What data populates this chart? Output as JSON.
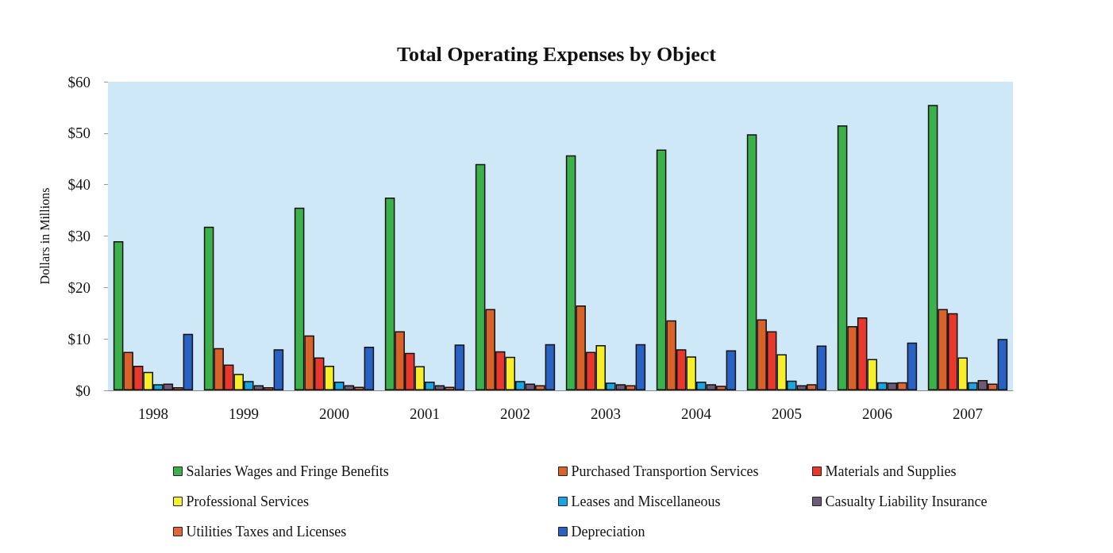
{
  "chart_data": {
    "type": "bar",
    "title": "Total Operating Expenses by Object",
    "ylabel": "Dollars in Millions",
    "categories": [
      "1998",
      "1999",
      "2000",
      "2001",
      "2002",
      "2003",
      "2004",
      "2005",
      "2006",
      "2007"
    ],
    "series": [
      {
        "name": "Salaries Wages and Fringe Benefits",
        "color": "#3cb04a",
        "values": [
          29,
          31.8,
          35.5,
          37.5,
          44,
          45.7,
          46.8,
          49.8,
          51.5,
          55.5
        ]
      },
      {
        "name": "Purchased Transportion Services",
        "color": "#d9622b",
        "values": [
          7.5,
          8.2,
          10.7,
          11.5,
          15.8,
          16.5,
          13.6,
          13.8,
          12.5,
          15.8
        ]
      },
      {
        "name": "Materials and Supplies",
        "color": "#e8382c",
        "values": [
          4.8,
          5,
          6.4,
          7.3,
          7.6,
          7.5,
          8,
          11.5,
          14.2,
          15
        ]
      },
      {
        "name": "Professional Services",
        "color": "#f6ee2a",
        "values": [
          3.6,
          3.2,
          4.8,
          4.7,
          6.5,
          8.8,
          6.6,
          7,
          6.1,
          6.4
        ]
      },
      {
        "name": "Leases and Miscellaneous",
        "color": "#1aa5e0",
        "values": [
          1.2,
          1.8,
          1.7,
          1.7,
          1.8,
          1.5,
          1.7,
          1.9,
          1.6,
          1.6
        ]
      },
      {
        "name": "Casualty Liability Insurance",
        "color": "#6e5a78",
        "values": [
          1.3,
          1,
          1,
          1,
          1.3,
          1.2,
          1.2,
          1,
          1.5,
          2
        ]
      },
      {
        "name": "Utilities Taxes and Licenses",
        "color": "#e0663a",
        "values": [
          0.6,
          0.6,
          0.7,
          0.7,
          1,
          1,
          0.9,
          1.2,
          1.6,
          1.3
        ]
      },
      {
        "name": "Depreciation",
        "color": "#2a62c4",
        "values": [
          11,
          8,
          8.5,
          8.9,
          9,
          9,
          7.8,
          8.7,
          9.3,
          10
        ]
      }
    ],
    "ylim": [
      0,
      60
    ],
    "yticks": [
      {
        "value": 0,
        "label": "$0"
      },
      {
        "value": 10,
        "label": "$10"
      },
      {
        "value": 20,
        "label": "$20"
      },
      {
        "value": 30,
        "label": "$30"
      },
      {
        "value": 40,
        "label": "$40"
      },
      {
        "value": 50,
        "label": "$50"
      },
      {
        "value": 60,
        "label": "$60"
      }
    ],
    "grid": false,
    "legend": "bottom"
  }
}
